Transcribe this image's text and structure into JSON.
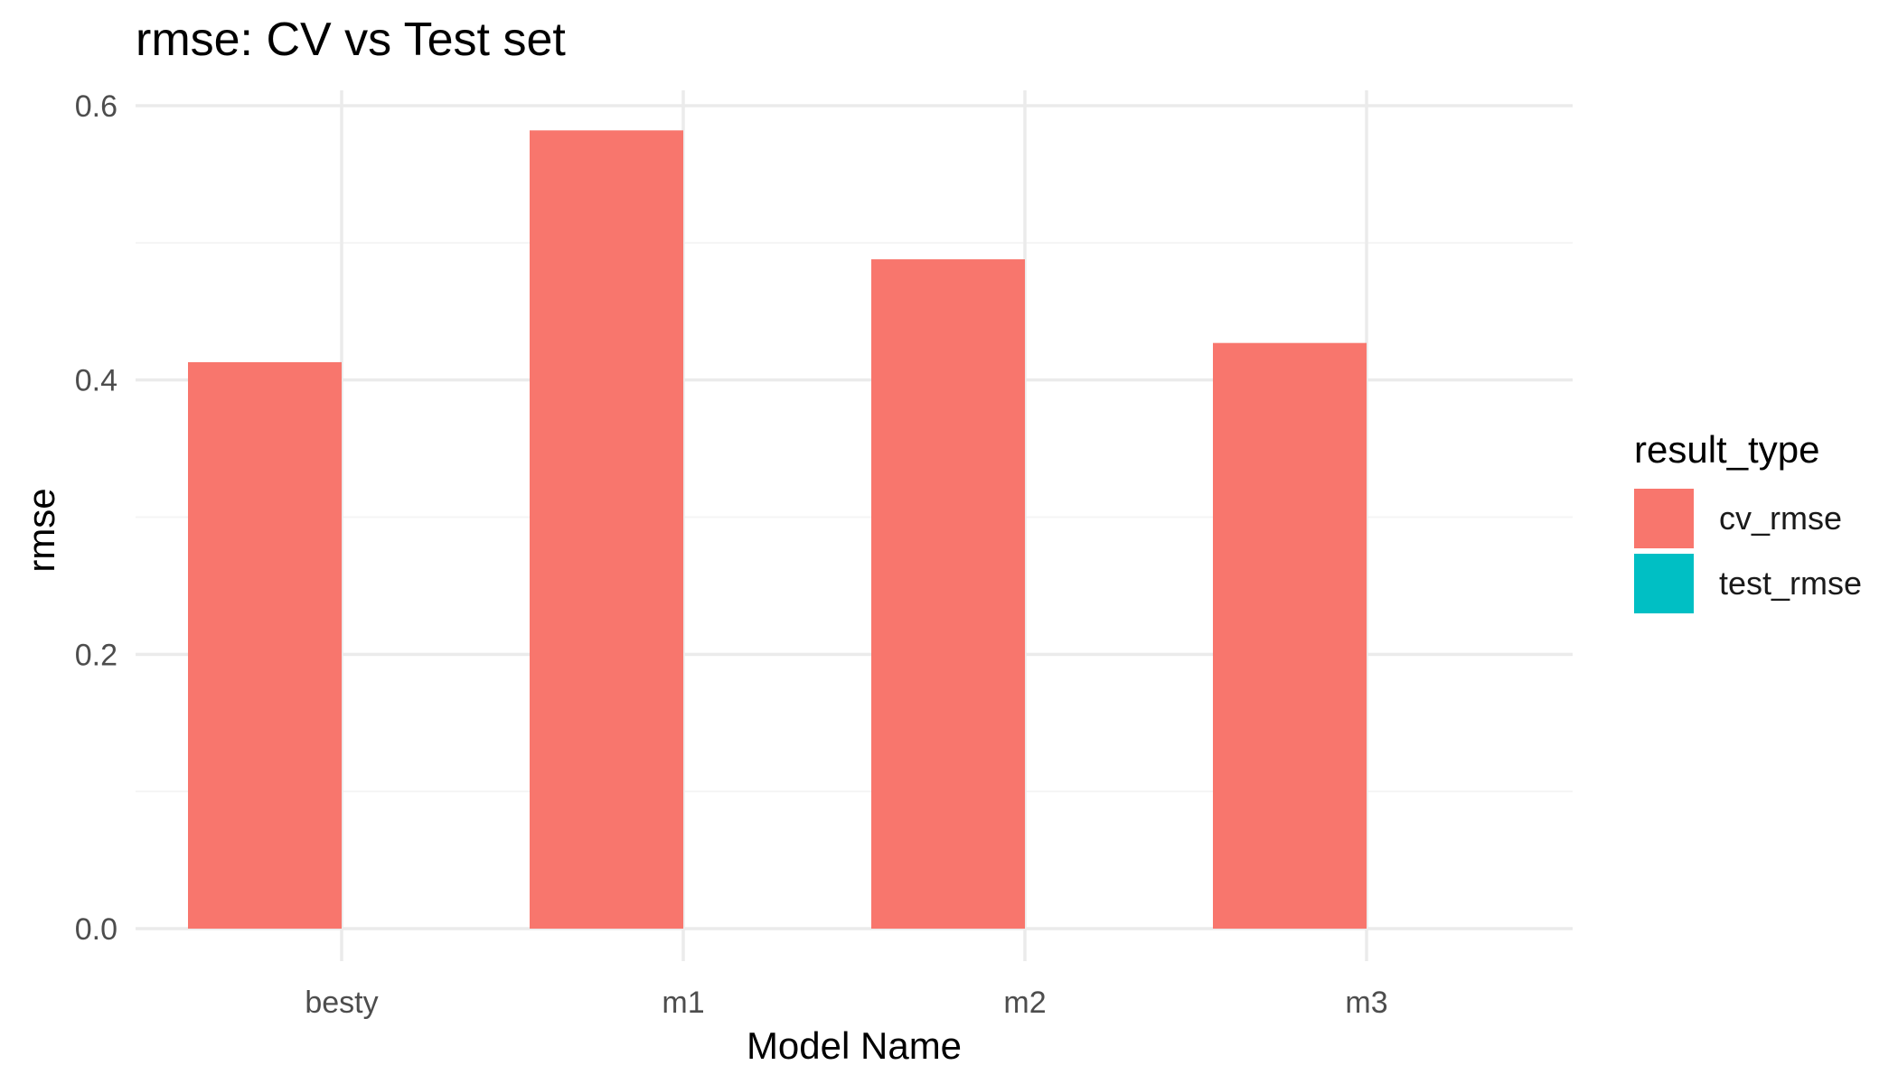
{
  "chart_data": {
    "type": "bar",
    "title": "rmse: CV vs Test set",
    "xlabel": "Model Name",
    "ylabel": "rmse",
    "categories": [
      "besty",
      "m1",
      "m2",
      "m3"
    ],
    "series": [
      {
        "name": "cv_rmse",
        "values": [
          0.413,
          0.582,
          0.488,
          0.427
        ]
      },
      {
        "name": "test_rmse",
        "values": [
          null,
          null,
          null,
          null
        ]
      }
    ],
    "ylim": [
      0,
      0.6
    ],
    "yticks": [
      0.0,
      0.2,
      0.4,
      0.6
    ],
    "ytick_labels": [
      "0.0",
      "0.2",
      "0.4",
      "0.6"
    ],
    "legend_title": "result_type",
    "legend_position": "right",
    "grid": true,
    "colors": {
      "cv_rmse": "#F8766D",
      "test_rmse": "#00BFC4",
      "grid_major": "#EBEBEB",
      "grid_minor": "#F4F4F4",
      "tick_text": "#4D4D4D"
    }
  }
}
